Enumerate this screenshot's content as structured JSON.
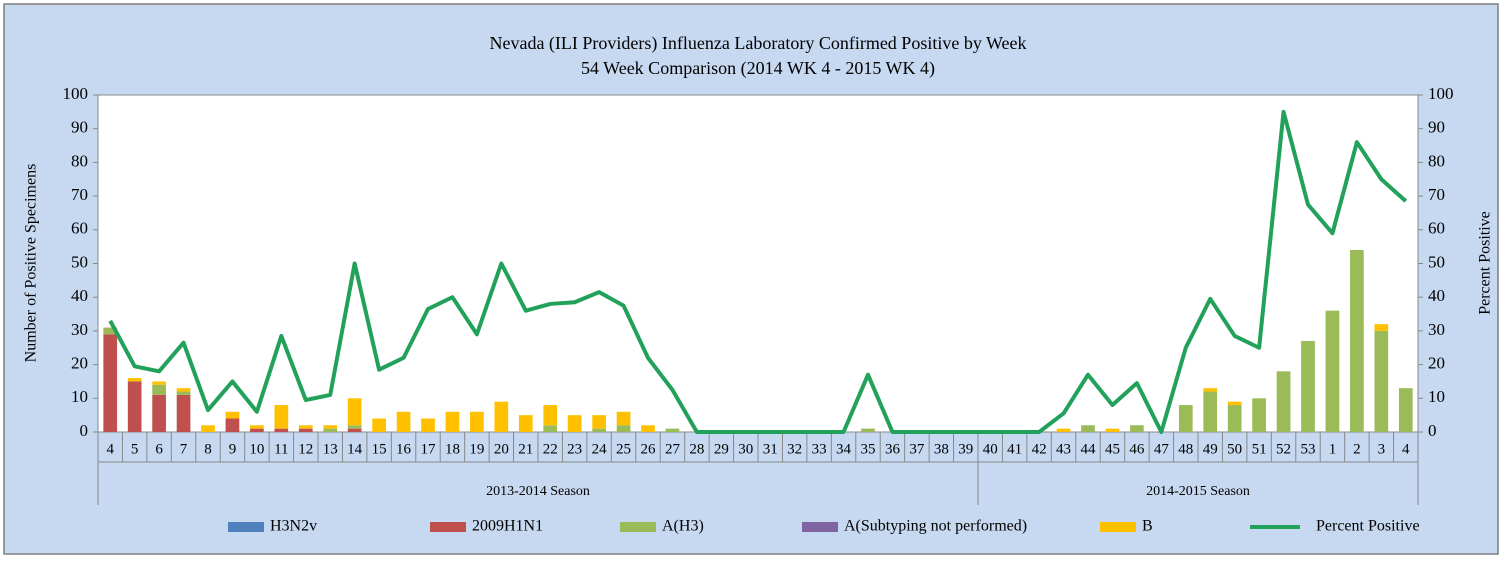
{
  "chart_data": {
    "type": "bar",
    "stacked": true,
    "title": "Nevada (ILI Providers) Influenza Laboratory Confirmed Positive by Week",
    "subtitle": "54 Week Comparison (2014 WK 4 - 2015 WK 4)",
    "y_label": "Number of Positive Specimens",
    "y2_label": "Percent Positive",
    "categories": [
      "4",
      "5",
      "6",
      "7",
      "8",
      "9",
      "10",
      "11",
      "12",
      "13",
      "14",
      "15",
      "16",
      "17",
      "18",
      "19",
      "20",
      "21",
      "22",
      "23",
      "24",
      "25",
      "26",
      "27",
      "28",
      "29",
      "30",
      "31",
      "32",
      "33",
      "34",
      "35",
      "36",
      "37",
      "38",
      "39",
      "40",
      "41",
      "42",
      "43",
      "44",
      "45",
      "46",
      "47",
      "48",
      "49",
      "50",
      "51",
      "52",
      "53",
      "1",
      "2",
      "3",
      "4"
    ],
    "groups": [
      {
        "name": "2013-2014 Season",
        "count": 36
      },
      {
        "name": "2014-2015 Season",
        "count": 18
      }
    ],
    "series": [
      {
        "name": "H3N2v",
        "color": "#4f81bd",
        "values": [
          0,
          0,
          0,
          0,
          0,
          0,
          0,
          0,
          0,
          0,
          0,
          0,
          0,
          0,
          0,
          0,
          0,
          0,
          0,
          0,
          0,
          0,
          0,
          0,
          0,
          0,
          0,
          0,
          0,
          0,
          0,
          0,
          0,
          0,
          0,
          0,
          0,
          0,
          0,
          0,
          0,
          0,
          0,
          0,
          0,
          0,
          0,
          0,
          0,
          0,
          0,
          0,
          0,
          0
        ]
      },
      {
        "name": "2009H1N1",
        "color": "#c0504d",
        "values": [
          29,
          15,
          11,
          11,
          0,
          4,
          1,
          1,
          1,
          0,
          1,
          0,
          0,
          0,
          0,
          0,
          0,
          0,
          0,
          0,
          0,
          0,
          0,
          0,
          0,
          0,
          0,
          0,
          0,
          0,
          0,
          0,
          0,
          0,
          0,
          0,
          0,
          0,
          0,
          0,
          0,
          0,
          0,
          0,
          0,
          0,
          0,
          0,
          0,
          0,
          0,
          0,
          0,
          0
        ]
      },
      {
        "name": "A(H3)",
        "color": "#9bbb59",
        "values": [
          2,
          0,
          3,
          1,
          0,
          0,
          0,
          0,
          0,
          1,
          1,
          0,
          0,
          0,
          0,
          0,
          0,
          0,
          2,
          0,
          1,
          2,
          0,
          1,
          0,
          0,
          0,
          0,
          0,
          0,
          0,
          1,
          0,
          0,
          0,
          0,
          0,
          0,
          0,
          0,
          2,
          0,
          2,
          0,
          8,
          12,
          8,
          10,
          18,
          27,
          36,
          54,
          30,
          13
        ]
      },
      {
        "name": "A(Subtyping not performed)",
        "color": "#8064a2",
        "values": [
          0,
          0,
          0,
          0,
          0,
          0,
          0,
          0,
          0,
          0,
          0,
          0,
          0,
          0,
          0,
          0,
          0,
          0,
          0,
          0,
          0,
          0,
          0,
          0,
          0,
          0,
          0,
          0,
          0,
          0,
          0,
          0,
          0,
          0,
          0,
          0,
          0,
          0,
          0,
          0,
          0,
          0,
          0,
          0,
          0,
          0,
          0,
          0,
          0,
          0,
          0,
          0,
          0,
          0
        ]
      },
      {
        "name": "B",
        "color": "#ffc000",
        "values": [
          0,
          1,
          1,
          1,
          2,
          2,
          1,
          7,
          1,
          1,
          8,
          4,
          6,
          4,
          6,
          6,
          9,
          5,
          6,
          5,
          4,
          4,
          2,
          0,
          0,
          0,
          0,
          0,
          0,
          0,
          0,
          0,
          0,
          0,
          0,
          0,
          0,
          0,
          0,
          1,
          0,
          1,
          0,
          0,
          0,
          1,
          1,
          0,
          0,
          0,
          0,
          0,
          2,
          0
        ]
      },
      {
        "name": "Percent Positive",
        "color": "#22a15a",
        "type": "line",
        "axis": "y2",
        "values": [
          33,
          19.5,
          18,
          26.5,
          6.5,
          15,
          6,
          28.5,
          9.5,
          11,
          50,
          18.5,
          22,
          36.5,
          40,
          29,
          50,
          36,
          38,
          38.5,
          41.5,
          37.5,
          22,
          12.5,
          0,
          0,
          0,
          0,
          0,
          0,
          0,
          17,
          0,
          0,
          0,
          0,
          0,
          0,
          0,
          5.5,
          17,
          8,
          14.5,
          0,
          25,
          39.5,
          28.5,
          25,
          95,
          67.5,
          59,
          86,
          75,
          68.5
        ]
      }
    ],
    "ylim": [
      0,
      100
    ],
    "yticks": [
      0,
      10,
      20,
      30,
      40,
      50,
      60,
      70,
      80,
      90,
      100
    ],
    "y2lim": [
      0,
      100
    ],
    "y2ticks": [
      0,
      10,
      20,
      30,
      40,
      50,
      60,
      70,
      80,
      90,
      100
    ],
    "legend": "bottom"
  }
}
